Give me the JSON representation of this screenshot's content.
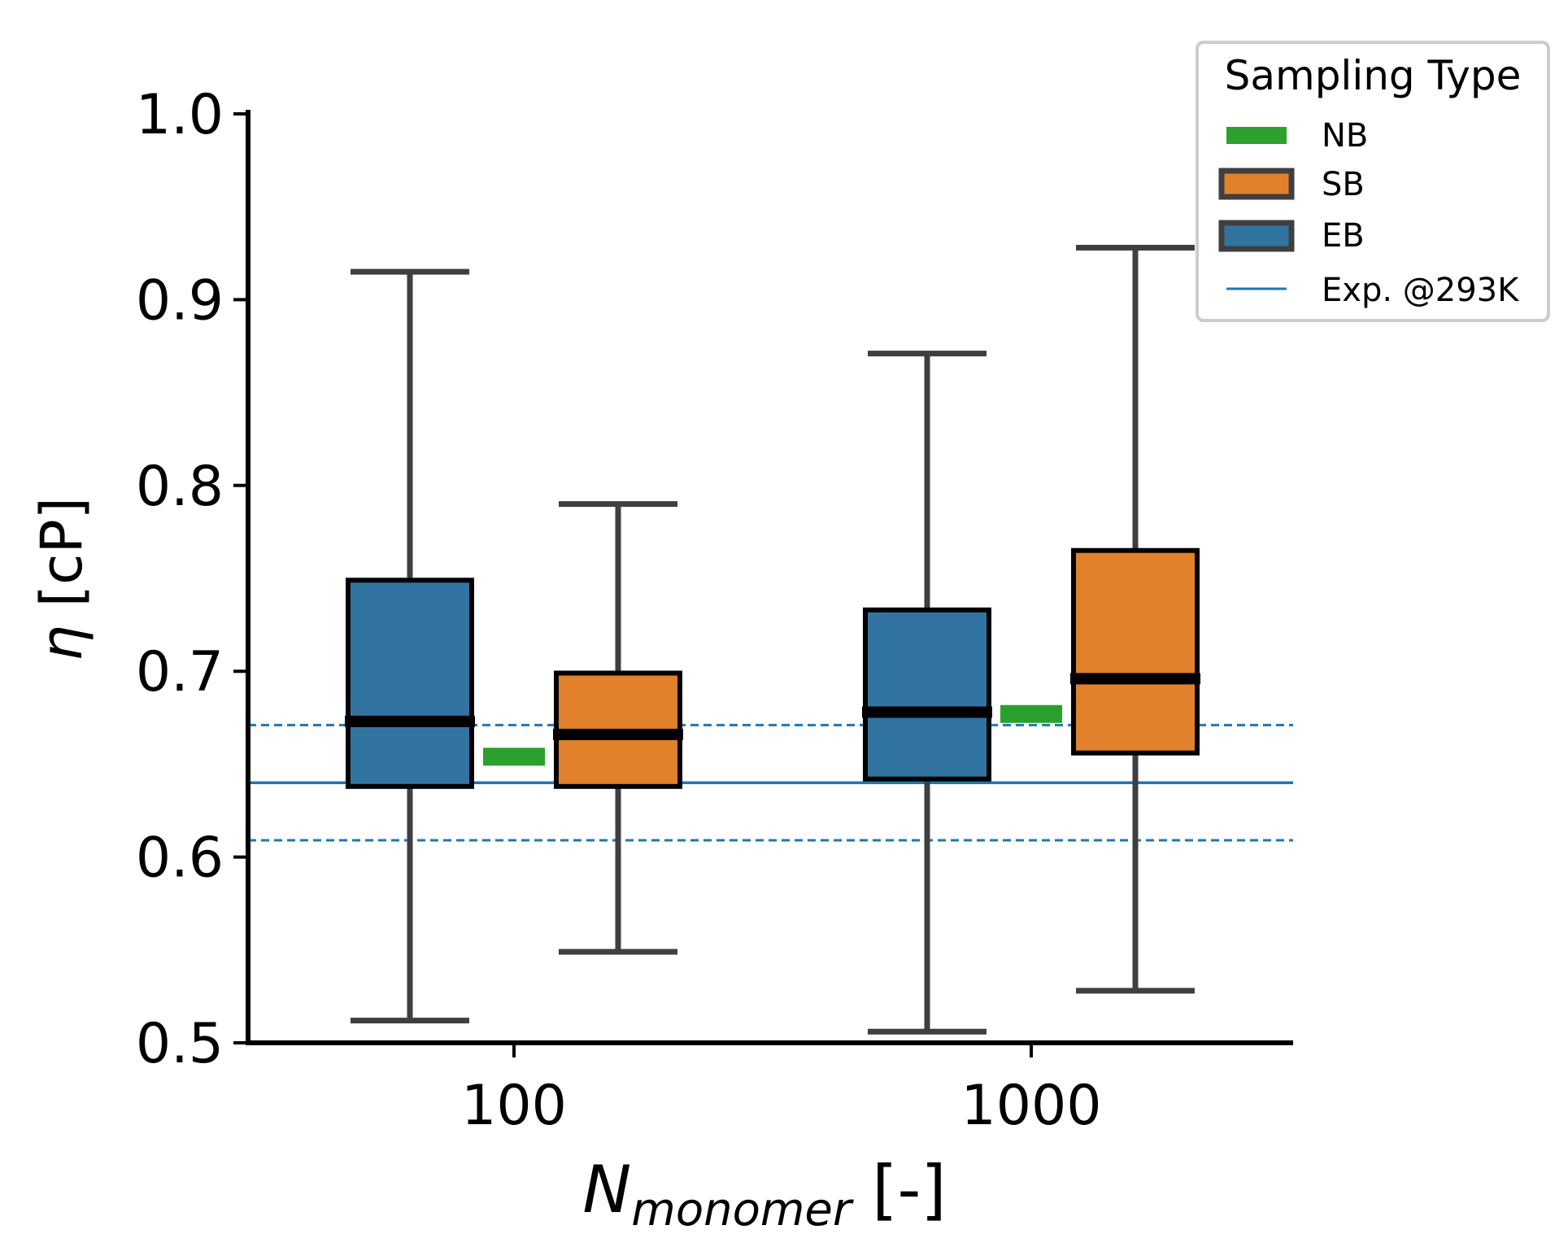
{
  "chart_data": {
    "type": "box",
    "xlabel_main": "N",
    "xlabel_sub": "monomer",
    "xlabel_unit": " [-]",
    "ylabel_symbol": "η",
    "ylabel_unit": " [cP]",
    "ylim": [
      0.5,
      1.0
    ],
    "yticks": [
      0.5,
      0.6,
      0.7,
      0.8,
      0.9,
      1.0
    ],
    "ytick_labels": [
      "0.5",
      "0.6",
      "0.7",
      "0.8",
      "0.9",
      "1.0"
    ],
    "categories": [
      "100",
      "1000"
    ],
    "colors": {
      "EB": "#3274a1",
      "SB": "#e1812c",
      "NB": "#2ca02c",
      "exp": "#1f77b4",
      "whisker": "#3f3f3f"
    },
    "series": [
      {
        "name": "EB",
        "boxes": [
          {
            "category": "100",
            "min": 0.512,
            "q1": 0.638,
            "median": 0.673,
            "q3": 0.749,
            "max": 0.915
          },
          {
            "category": "1000",
            "min": 0.506,
            "q1": 0.642,
            "median": 0.678,
            "q3": 0.733,
            "max": 0.871
          }
        ]
      },
      {
        "name": "SB",
        "boxes": [
          {
            "category": "100",
            "min": 0.549,
            "q1": 0.638,
            "median": 0.666,
            "q3": 0.699,
            "max": 0.79
          },
          {
            "category": "1000",
            "min": 0.528,
            "q1": 0.656,
            "median": 0.696,
            "q3": 0.765,
            "max": 0.928
          }
        ]
      }
    ],
    "nb_values": [
      {
        "category": "100",
        "value": 0.654
      },
      {
        "category": "1000",
        "value": 0.677
      }
    ],
    "experimental": {
      "value": 0.64,
      "upper": 0.671,
      "lower": 0.609,
      "label": "Exp. @293K"
    },
    "legend": {
      "title": "Sampling Type",
      "position": "top-right",
      "entries": [
        "NB",
        "SB",
        "EB",
        "Exp. @293K"
      ]
    }
  }
}
